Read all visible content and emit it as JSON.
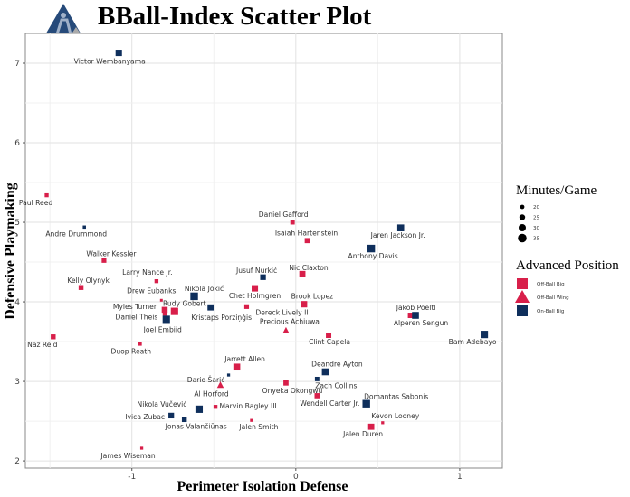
{
  "chart_data": {
    "type": "scatter",
    "title": "BBall-Index Scatter Plot",
    "xlabel": "Perimeter Isolation Defense",
    "ylabel": "Defensive Playmaking",
    "xlim": [
      -1.65,
      1.26
    ],
    "ylim": [
      1.91,
      7.375
    ],
    "xticks": [
      -1,
      0,
      1
    ],
    "yticks": [
      2,
      3,
      4,
      5,
      6,
      7
    ],
    "grid": true,
    "legend_placement": "right",
    "legends": {
      "size": {
        "title": "Minutes/Game",
        "values": [
          20,
          25,
          30,
          35
        ]
      },
      "shape": {
        "title": "Advanced Position",
        "entries": [
          {
            "label": "Off-Ball  Big",
            "shape": "square",
            "color": "#d81f4a"
          },
          {
            "label": "Off-Ball  Wing",
            "shape": "triangle",
            "color": "#d81f4a"
          },
          {
            "label": "On-Ball  Big",
            "shape": "square",
            "color": "#0f2f5c"
          }
        ]
      }
    },
    "points": [
      {
        "name": "Victor Wembanyama",
        "x": -1.08,
        "y": 7.13,
        "min": 30,
        "pos": "On-Ball  Big"
      },
      {
        "name": "Paul Reed",
        "x": -1.52,
        "y": 5.34,
        "min": 20,
        "pos": "Off-Ball  Big"
      },
      {
        "name": "Andre Drummond",
        "x": -1.29,
        "y": 4.94,
        "min": 17,
        "pos": "On-Ball  Big"
      },
      {
        "name": "Walker Kessler",
        "x": -1.17,
        "y": 4.52,
        "min": 23,
        "pos": "Off-Ball  Big"
      },
      {
        "name": "Kelly Olynyk",
        "x": -1.31,
        "y": 4.18,
        "min": 24,
        "pos": "Off-Ball  Big"
      },
      {
        "name": "Larry Nance Jr.",
        "x": -0.85,
        "y": 4.26,
        "min": 20,
        "pos": "Off-Ball  Big"
      },
      {
        "name": "Drew Eubanks",
        "x": -0.82,
        "y": 4.02,
        "min": 15,
        "pos": "Off-Ball  Big"
      },
      {
        "name": "Myles Turner",
        "x": -0.8,
        "y": 3.9,
        "min": 28,
        "pos": "Off-Ball  Big"
      },
      {
        "name": "Rudy Gobert",
        "x": -0.74,
        "y": 3.88,
        "min": 34,
        "pos": "Off-Ball  Big"
      },
      {
        "name": "Daniel Theis",
        "x": -0.8,
        "y": 3.85,
        "min": 20,
        "pos": "Off-Ball  Big"
      },
      {
        "name": "Joel Embiid",
        "x": -0.79,
        "y": 3.78,
        "min": 34,
        "pos": "On-Ball  Big"
      },
      {
        "name": "Nikola Jokić",
        "x": -0.62,
        "y": 4.07,
        "min": 35,
        "pos": "On-Ball  Big"
      },
      {
        "name": "Kristaps Porziņģis",
        "x": -0.52,
        "y": 3.93,
        "min": 29,
        "pos": "On-Ball  Big"
      },
      {
        "name": "Jusuf Nurkić",
        "x": -0.2,
        "y": 4.31,
        "min": 27,
        "pos": "On-Ball  Big"
      },
      {
        "name": "Chet Holmgren",
        "x": -0.25,
        "y": 4.17,
        "min": 30,
        "pos": "Off-Ball  Big"
      },
      {
        "name": "Dereck Lively II",
        "x": -0.3,
        "y": 3.94,
        "min": 23,
        "pos": "Off-Ball  Big"
      },
      {
        "name": "Daniel Gafford",
        "x": -0.02,
        "y": 5.0,
        "min": 22,
        "pos": "Off-Ball  Big"
      },
      {
        "name": "Isaiah Hartenstein",
        "x": 0.07,
        "y": 4.77,
        "min": 25,
        "pos": "Off-Ball  Big"
      },
      {
        "name": "Nic Claxton",
        "x": 0.04,
        "y": 4.35,
        "min": 29,
        "pos": "Off-Ball  Big"
      },
      {
        "name": "Brook Lopez",
        "x": 0.05,
        "y": 3.97,
        "min": 30,
        "pos": "Off-Ball  Big"
      },
      {
        "name": "Precious Achiuwa",
        "x": -0.06,
        "y": 3.64,
        "min": 24,
        "pos": "Off-Ball  Wing"
      },
      {
        "name": "Clint Capela",
        "x": 0.2,
        "y": 3.58,
        "min": 26,
        "pos": "Off-Ball  Big"
      },
      {
        "name": "Jaren Jackson Jr.",
        "x": 0.64,
        "y": 4.93,
        "min": 32,
        "pos": "On-Ball  Big"
      },
      {
        "name": "Anthony Davis",
        "x": 0.46,
        "y": 4.67,
        "min": 35,
        "pos": "On-Ball  Big"
      },
      {
        "name": "Jakob Poeltl",
        "x": 0.7,
        "y": 3.83,
        "min": 26,
        "pos": "Off-Ball  Big"
      },
      {
        "name": "Alperen Sengun",
        "x": 0.73,
        "y": 3.83,
        "min": 32,
        "pos": "On-Ball  Big"
      },
      {
        "name": "Bam Adebayo",
        "x": 1.15,
        "y": 3.59,
        "min": 34,
        "pos": "On-Ball  Big"
      },
      {
        "name": "Naz Reid",
        "x": -1.48,
        "y": 3.56,
        "min": 24,
        "pos": "Off-Ball  Big"
      },
      {
        "name": "Duop Reath",
        "x": -0.95,
        "y": 3.47,
        "min": 18,
        "pos": "Off-Ball  Big"
      },
      {
        "name": "Jarrett Allen",
        "x": -0.36,
        "y": 3.18,
        "min": 32,
        "pos": "Off-Ball  Big"
      },
      {
        "name": "Dario Šarić",
        "x": -0.41,
        "y": 3.08,
        "min": 16,
        "pos": "On-Ball  Big"
      },
      {
        "name": "Al Horford",
        "x": -0.46,
        "y": 2.95,
        "min": 27,
        "pos": "Off-Ball  Wing"
      },
      {
        "name": "Onyeka Okongwu",
        "x": -0.06,
        "y": 2.98,
        "min": 25,
        "pos": "Off-Ball  Big"
      },
      {
        "name": "Deandre Ayton",
        "x": 0.18,
        "y": 3.12,
        "min": 32,
        "pos": "On-Ball  Big"
      },
      {
        "name": "Zach Collins",
        "x": 0.13,
        "y": 3.03,
        "min": 22,
        "pos": "On-Ball  Big"
      },
      {
        "name": "Wendell Carter Jr.",
        "x": 0.13,
        "y": 2.82,
        "min": 25,
        "pos": "Off-Ball  Big"
      },
      {
        "name": "Domantas Sabonis",
        "x": 0.43,
        "y": 2.72,
        "min": 35,
        "pos": "On-Ball  Big"
      },
      {
        "name": "Kevon Looney",
        "x": 0.53,
        "y": 2.48,
        "min": 16,
        "pos": "Off-Ball  Big"
      },
      {
        "name": "Jalen Duren",
        "x": 0.46,
        "y": 2.43,
        "min": 29,
        "pos": "Off-Ball  Big"
      },
      {
        "name": "Marvin Bagley III",
        "x": -0.49,
        "y": 2.68,
        "min": 20,
        "pos": "Off-Ball  Big"
      },
      {
        "name": "Nikola Vučević",
        "x": -0.59,
        "y": 2.65,
        "min": 34,
        "pos": "On-Ball  Big"
      },
      {
        "name": "Ivica Zubac",
        "x": -0.76,
        "y": 2.57,
        "min": 27,
        "pos": "On-Ball  Big"
      },
      {
        "name": "Jonas Valančiūnas",
        "x": -0.68,
        "y": 2.52,
        "min": 24,
        "pos": "On-Ball  Big"
      },
      {
        "name": "Jalen Smith",
        "x": -0.27,
        "y": 2.51,
        "min": 16,
        "pos": "Off-Ball  Big"
      },
      {
        "name": "James Wiseman",
        "x": -0.94,
        "y": 2.16,
        "min": 16,
        "pos": "Off-Ball  Big"
      }
    ]
  }
}
